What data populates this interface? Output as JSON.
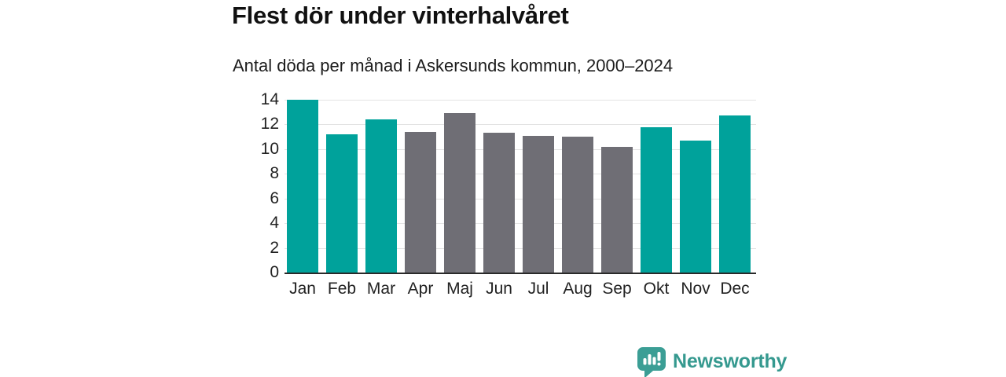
{
  "header": {
    "title": "Flest dör under vinterhalvåret",
    "subtitle": "Antal döda per månad i Askersunds kommun, 2000–2024"
  },
  "chart_data": {
    "type": "bar",
    "title": "Flest dör under vinterhalvåret",
    "subtitle": "Antal döda per månad i Askersunds kommun, 2000–2024",
    "categories": [
      "Jan",
      "Feb",
      "Mar",
      "Apr",
      "Maj",
      "Jun",
      "Jul",
      "Aug",
      "Sep",
      "Okt",
      "Nov",
      "Dec"
    ],
    "values": [
      14.0,
      11.2,
      12.4,
      11.4,
      12.9,
      11.3,
      11.1,
      11.0,
      10.2,
      11.8,
      10.7,
      12.7
    ],
    "highlighted": [
      true,
      true,
      true,
      false,
      false,
      false,
      false,
      false,
      false,
      true,
      true,
      true
    ],
    "colors": {
      "highlight": "#00a29b",
      "neutral": "#6f6e75"
    },
    "xlabel": "",
    "ylabel": "",
    "ylim": [
      0,
      14
    ],
    "yticks": [
      0,
      2,
      4,
      6,
      8,
      10,
      12,
      14
    ],
    "grid": true,
    "legend": "none"
  },
  "footer": {
    "brand": "Newsworthy",
    "brand_color": "#35998f",
    "logo_icon": "newsworthy-bar-chart-bubble-icon"
  }
}
